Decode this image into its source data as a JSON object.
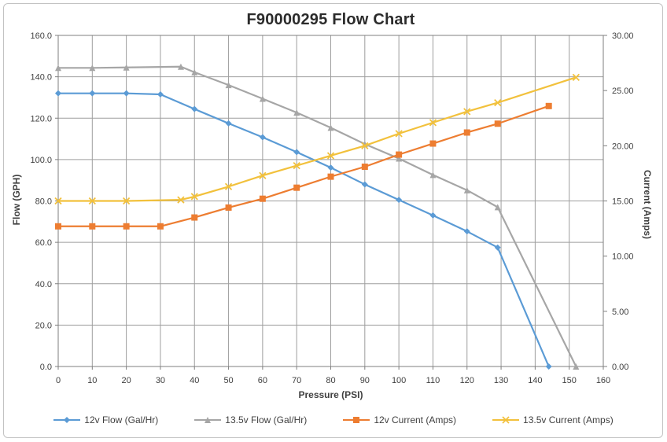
{
  "chart_data": {
    "type": "line",
    "title": "F90000295 Flow Chart",
    "xlabel": "Pressure (PSI)",
    "ylabel_left": "Flow (GPH)",
    "ylabel_right": "Current (Amps)",
    "x_range": [
      0,
      160
    ],
    "x_tick_step": 10,
    "x_tick_labels": [
      "0",
      "10",
      "20",
      "30",
      "40",
      "50",
      "60",
      "70",
      "80",
      "90",
      "100",
      "110",
      "120",
      "130",
      "140",
      "150",
      "160"
    ],
    "y_left_range": [
      0,
      160
    ],
    "y_left_tick_step": 20,
    "y_left_tick_labels": [
      "0.0",
      "20.0",
      "40.0",
      "60.0",
      "80.0",
      "100.0",
      "120.0",
      "140.0",
      "160.0"
    ],
    "y_right_range": [
      0,
      30
    ],
    "y_right_tick_step": 5,
    "y_right_tick_labels": [
      "0.00",
      "5.00",
      "10.00",
      "15.00",
      "20.00",
      "25.00",
      "30.00"
    ],
    "grid": true,
    "legend_position": "bottom",
    "colors": {
      "grid": "#9e9e9e",
      "axis": "#7f7f7f",
      "text": "#404040"
    },
    "series": [
      {
        "name": "12v Flow (Gal/Hr)",
        "axis": "left",
        "color": "#5b9bd5",
        "marker": "diamond",
        "x": [
          0,
          10,
          20,
          30,
          40,
          50,
          60,
          70,
          80,
          90,
          100,
          110,
          120,
          129,
          144
        ],
        "y": [
          132,
          132,
          132,
          131.5,
          124.4,
          117.5,
          110.8,
          103.6,
          96.1,
          88,
          80.5,
          73,
          65.3,
          57.5,
          0
        ]
      },
      {
        "name": "13.5v Flow (Gal/Hr)",
        "axis": "left",
        "color": "#a6a6a6",
        "marker": "triangle",
        "x": [
          0,
          10,
          20,
          36,
          40,
          50,
          60,
          70,
          80,
          90,
          100,
          110,
          120,
          129,
          152
        ],
        "y": [
          144.3,
          144.3,
          144.5,
          144.9,
          142.2,
          136,
          129.4,
          122.7,
          115.4,
          107.5,
          100.5,
          92.6,
          85.2,
          77,
          0
        ]
      },
      {
        "name": "12v Current (Amps)",
        "axis": "right",
        "color": "#ed7d31",
        "marker": "square",
        "x": [
          0,
          10,
          20,
          30,
          40,
          50,
          60,
          70,
          80,
          90,
          100,
          110,
          120,
          129,
          144
        ],
        "y": [
          12.7,
          12.7,
          12.7,
          12.7,
          13.5,
          14.4,
          15.2,
          16.2,
          17.2,
          18.1,
          19.2,
          20.2,
          21.2,
          22.0,
          23.6
        ]
      },
      {
        "name": "13.5v Current (Amps)",
        "axis": "right",
        "color": "#f2c13c",
        "marker": "x",
        "x": [
          0,
          10,
          20,
          36,
          40,
          50,
          60,
          70,
          80,
          90,
          100,
          110,
          120,
          129,
          152
        ],
        "y": [
          15.0,
          15.0,
          15.0,
          15.1,
          15.4,
          16.3,
          17.3,
          18.2,
          19.1,
          20.0,
          21.1,
          22.1,
          23.1,
          23.9,
          26.2
        ]
      }
    ]
  }
}
